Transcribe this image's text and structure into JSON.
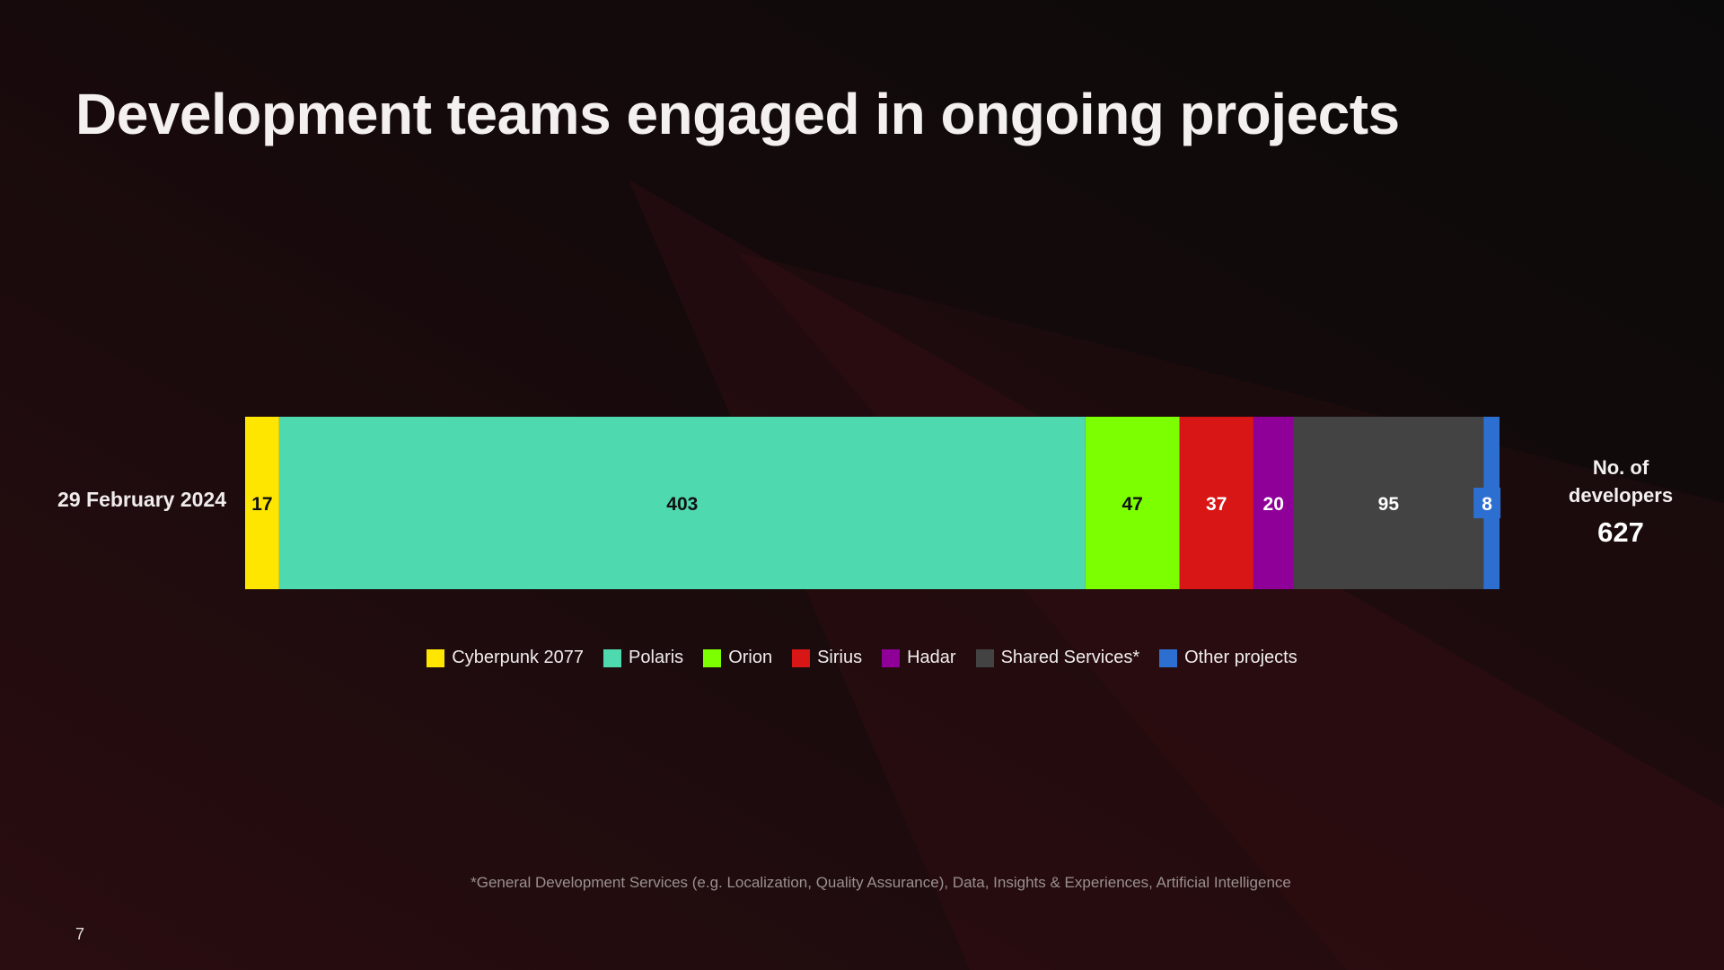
{
  "slide": {
    "title": "Development teams engaged in ongoing projects",
    "footnote": "*General Development Services (e.g. Localization, Quality Assurance), Data, Insights & Experiences, Artificial Intelligence",
    "page_number": "7"
  },
  "chart_data": {
    "type": "bar",
    "orientation": "horizontal",
    "stacked": true,
    "title": "",
    "categories": [
      "29 February 2024"
    ],
    "series": [
      {
        "name": "Cyberpunk 2077",
        "values": [
          17
        ],
        "color": "#ffe600",
        "label_color": "#111111"
      },
      {
        "name": "Polaris",
        "values": [
          403
        ],
        "color": "#4fd9ae",
        "label_color": "#111111"
      },
      {
        "name": "Orion",
        "values": [
          47
        ],
        "color": "#7cff00",
        "label_color": "#111111"
      },
      {
        "name": "Sirius",
        "values": [
          37
        ],
        "color": "#d81616",
        "label_color": "#ffffff"
      },
      {
        "name": "Hadar",
        "values": [
          20
        ],
        "color": "#8f0099",
        "label_color": "#ffffff"
      },
      {
        "name": "Shared Services*",
        "values": [
          95
        ],
        "color": "#434343",
        "label_color": "#ffffff"
      },
      {
        "name": "Other projects",
        "values": [
          8
        ],
        "color": "#2d6fd1",
        "label_color": "#ffffff"
      }
    ],
    "total": {
      "label": "No. of developers",
      "value": 627
    },
    "legend_position": "bottom-center",
    "grid": false
  }
}
